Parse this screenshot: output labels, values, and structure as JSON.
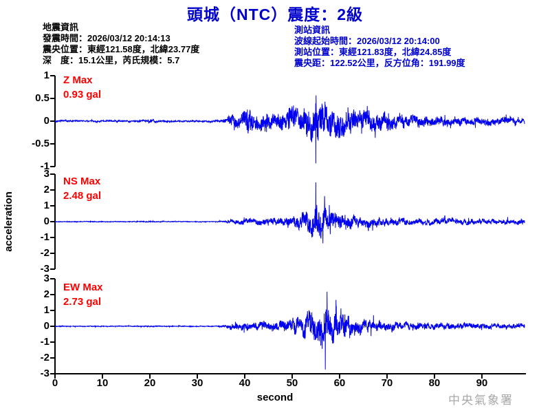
{
  "header": {
    "title": "頭城（NTC）震度：2級"
  },
  "earthquake_info": {
    "lines": [
      "地震資訊",
      "發震時間：2026/03/12 20:14:13",
      "震央位置：東經121.58度，北緯23.77度",
      "深　度：15.1公里，芮氏規模：5.7"
    ]
  },
  "station_info": {
    "lines": [
      "測站資訊",
      "波線起始時間：2026/03/12 20:14:00",
      "測站位置：東經121.83度，北緯24.85度",
      "震央距：122.52公里，反方位角：191.99度"
    ]
  },
  "footer": {
    "watermark": "中央氣象署"
  },
  "colors": {
    "title_blue": "#0000CC",
    "info_blue": "#0000CC",
    "trace_blue": "#0000EE",
    "label_red": "#FF0000",
    "axis_black": "#000000",
    "watermark_gray": "#A9A9A9"
  },
  "chart_data": {
    "type": "line",
    "title": "",
    "xlabel": "second",
    "ylabel": "acceleration",
    "unit": "gal",
    "xlim": [
      0,
      99
    ],
    "x_ticks": [
      0,
      10,
      20,
      30,
      40,
      50,
      60,
      70,
      80,
      90
    ],
    "charts": [
      {
        "channel": "Z",
        "max_label": "Z Max",
        "max_value": "0.93 gal",
        "max_gal": 0.93,
        "peak_time_s": 55,
        "peak_sign": -1,
        "ylim": [
          -1,
          1
        ],
        "y_ticks": [
          1,
          0.5,
          0,
          -0.5,
          -1
        ],
        "envelope": [
          [
            0,
            0.04
          ],
          [
            17,
            0.04
          ],
          [
            19,
            0.055
          ],
          [
            20,
            0.1
          ],
          [
            21,
            0.055
          ],
          [
            23,
            0.04
          ],
          [
            33,
            0.04
          ],
          [
            35,
            0.05
          ],
          [
            36,
            0.14
          ],
          [
            37,
            0.34
          ],
          [
            39,
            0.36
          ],
          [
            41,
            0.52
          ],
          [
            43,
            0.44
          ],
          [
            45,
            0.42
          ],
          [
            47,
            0.48
          ],
          [
            49,
            0.52
          ],
          [
            51,
            0.6
          ],
          [
            53,
            0.72
          ],
          [
            55,
            0.93
          ],
          [
            56,
            0.84
          ],
          [
            58,
            0.74
          ],
          [
            60,
            0.68
          ],
          [
            62,
            0.6
          ],
          [
            64,
            0.54
          ],
          [
            66,
            0.47
          ],
          [
            68,
            0.42
          ],
          [
            71,
            0.35
          ],
          [
            74,
            0.31
          ],
          [
            77,
            0.27
          ],
          [
            80,
            0.24
          ],
          [
            84,
            0.21
          ],
          [
            88,
            0.19
          ],
          [
            92,
            0.17
          ],
          [
            96,
            0.16
          ],
          [
            99,
            0.15
          ]
        ]
      },
      {
        "channel": "NS",
        "max_label": "NS Max",
        "max_value": "2.48 gal",
        "max_gal": 2.48,
        "peak_time_s": 55,
        "peak_sign": 1,
        "ylim": [
          -3,
          3
        ],
        "y_ticks": [
          3,
          2,
          1,
          0,
          -1,
          -2,
          -3
        ],
        "envelope": [
          [
            0,
            0.05
          ],
          [
            18,
            0.05
          ],
          [
            20,
            0.09
          ],
          [
            21,
            0.06
          ],
          [
            23,
            0.05
          ],
          [
            34,
            0.05
          ],
          [
            36,
            0.09
          ],
          [
            37,
            0.3
          ],
          [
            39,
            0.34
          ],
          [
            42,
            0.38
          ],
          [
            45,
            0.46
          ],
          [
            48,
            0.55
          ],
          [
            50,
            0.75
          ],
          [
            52,
            1.05
          ],
          [
            54,
            1.8
          ],
          [
            55,
            2.48
          ],
          [
            56,
            2.1
          ],
          [
            57,
            1.7
          ],
          [
            58,
            1.4
          ],
          [
            60,
            1.1
          ],
          [
            62,
            0.9
          ],
          [
            64,
            0.75
          ],
          [
            66,
            0.65
          ],
          [
            69,
            0.55
          ],
          [
            72,
            0.5
          ],
          [
            76,
            0.45
          ],
          [
            80,
            0.42
          ],
          [
            85,
            0.38
          ],
          [
            90,
            0.35
          ],
          [
            95,
            0.32
          ],
          [
            99,
            0.3
          ]
        ]
      },
      {
        "channel": "EW",
        "max_label": "EW Max",
        "max_value": "2.73 gal",
        "max_gal": 2.73,
        "peak_time_s": 57,
        "peak_sign": -1,
        "ylim": [
          -3,
          3
        ],
        "y_ticks": [
          3,
          2,
          1,
          0,
          -1,
          -2,
          -3
        ],
        "envelope": [
          [
            0,
            0.05
          ],
          [
            18,
            0.05
          ],
          [
            20,
            0.09
          ],
          [
            21,
            0.06
          ],
          [
            23,
            0.05
          ],
          [
            34,
            0.05
          ],
          [
            36,
            0.12
          ],
          [
            37,
            0.42
          ],
          [
            39,
            0.46
          ],
          [
            42,
            0.5
          ],
          [
            45,
            0.55
          ],
          [
            48,
            0.66
          ],
          [
            50,
            0.9
          ],
          [
            52,
            1.4
          ],
          [
            54,
            2.0
          ],
          [
            56,
            2.45
          ],
          [
            57,
            2.73
          ],
          [
            58,
            2.2
          ],
          [
            60,
            1.6
          ],
          [
            62,
            1.2
          ],
          [
            64,
            0.98
          ],
          [
            66,
            0.82
          ],
          [
            69,
            0.68
          ],
          [
            72,
            0.58
          ],
          [
            76,
            0.5
          ],
          [
            80,
            0.46
          ],
          [
            85,
            0.42
          ],
          [
            90,
            0.4
          ],
          [
            95,
            0.36
          ],
          [
            99,
            0.34
          ]
        ]
      }
    ]
  }
}
